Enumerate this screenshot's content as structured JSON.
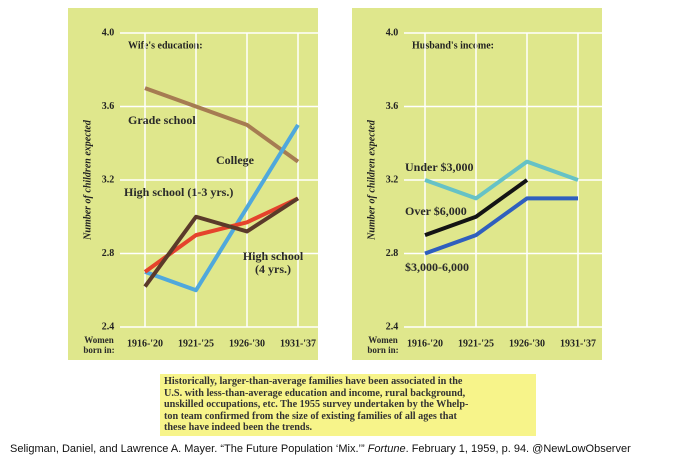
{
  "chart_data": [
    {
      "type": "line",
      "title": "Wife's education:",
      "y_label": "Number of children expected",
      "x_label": "Women born in:",
      "categories": [
        "1916-'20",
        "1921-'25",
        "1926-'30",
        "1931-'37"
      ],
      "ylim": [
        2.4,
        4.0
      ],
      "yticks": [
        2.4,
        2.8,
        3.2,
        3.6,
        {
          "value": 4.0,
          "label": "4.0"
        }
      ],
      "grid": true,
      "series": [
        {
          "name": "Grade school",
          "color": "#a67c52",
          "values": [
            3.7,
            3.6,
            3.5,
            3.3
          ]
        },
        {
          "name": "College",
          "color": "#4fa8dc",
          "values": [
            2.7,
            2.6,
            3.05,
            3.5
          ]
        },
        {
          "name": "High school (1-3 yrs.)",
          "color": "#e5432c",
          "values": [
            2.7,
            2.9,
            2.97,
            3.1
          ]
        },
        {
          "name": "High school (4 yrs.)",
          "color": "#5b3a2a",
          "values": [
            2.62,
            3.0,
            2.92,
            3.1
          ]
        }
      ]
    },
    {
      "type": "line",
      "title": "Husband's income:",
      "y_label": "Number of children expected",
      "x_label": "Women born in:",
      "categories": [
        "1916-'20",
        "1921-'25",
        "1926-'30",
        "1931-'37"
      ],
      "ylim": [
        2.4,
        4.0
      ],
      "yticks": [
        2.4,
        2.8,
        3.2,
        3.6,
        {
          "value": 4.0,
          "label": "4.0"
        }
      ],
      "grid": true,
      "series": [
        {
          "name": "Under $3,000",
          "color": "#66c2c6",
          "values": [
            3.2,
            3.1,
            3.3,
            3.2
          ]
        },
        {
          "name": "Over $6,000",
          "color": "#141414",
          "values": [
            2.9,
            3.0,
            3.2,
            null
          ]
        },
        {
          "name": "$3,000-6,000",
          "color": "#2f5fbe",
          "values": [
            2.8,
            2.9,
            3.1,
            3.1
          ]
        }
      ]
    }
  ],
  "caption": {
    "lines": [
      "Historically, larger-than-average families have been associated in the",
      "U.S. with less-than-average education and income, rural background,",
      "unskilled occupations, etc. The 1955 survey undertaken by the Whelp-",
      "ton team confirmed from the size of existing families of all ages that",
      "these have indeed been the trends."
    ]
  },
  "citation": {
    "before": "Seligman, Daniel, and Lawrence A. Mayer. “The Future Population ‘Mix.’” ",
    "italic": "Fortune",
    "after": ". February 1, 1959, p. 94. @NewLowObserver"
  }
}
